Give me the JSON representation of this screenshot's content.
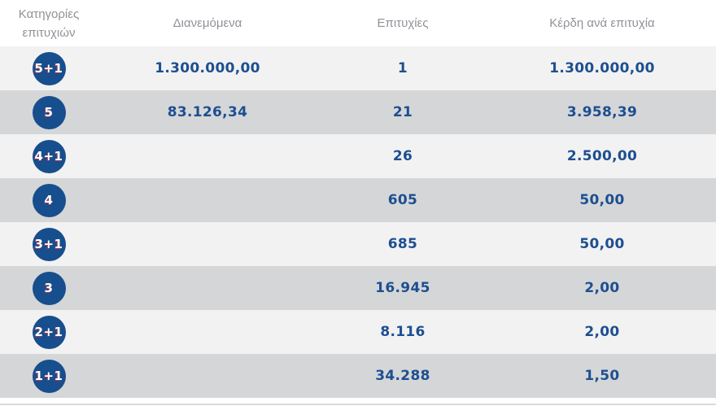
{
  "colors": {
    "primary_blue": "#174e8d",
    "value_text_blue": "#1d4f90",
    "header_text_gray": "#8f9298",
    "row_light": "#f2f2f3",
    "row_dark": "#d5d6d8",
    "badge_shadow_red": "#d63040",
    "bottom_border": "#d9dadb"
  },
  "table": {
    "headers": {
      "categories": "Κατηγορίες επιτυχιών",
      "distributed": "Διανεμόμενα",
      "wins": "Επιτυχίες",
      "prize_per_win": "Κέρδη ανά επιτυχία"
    },
    "rows": [
      {
        "tier": "5+1",
        "distributed": "1.300.000,00",
        "wins": "1",
        "prize": "1.300.000,00"
      },
      {
        "tier": "5",
        "distributed": "83.126,34",
        "wins": "21",
        "prize": "3.958,39"
      },
      {
        "tier": "4+1",
        "distributed": "",
        "wins": "26",
        "prize": "2.500,00"
      },
      {
        "tier": "4",
        "distributed": "",
        "wins": "605",
        "prize": "50,00"
      },
      {
        "tier": "3+1",
        "distributed": "",
        "wins": "685",
        "prize": "50,00"
      },
      {
        "tier": "3",
        "distributed": "",
        "wins": "16.945",
        "prize": "2,00"
      },
      {
        "tier": "2+1",
        "distributed": "",
        "wins": "8.116",
        "prize": "2,00"
      },
      {
        "tier": "1+1",
        "distributed": "",
        "wins": "34.288",
        "prize": "1,50"
      }
    ]
  },
  "chart_data": {
    "type": "table",
    "title": "",
    "columns": [
      "Κατηγορίες επιτυχιών",
      "Διανεμόμενα",
      "Επιτυχίες",
      "Κέρδη ανά επιτυχία"
    ],
    "rows": [
      [
        "5+1",
        "1.300.000,00",
        "1",
        "1.300.000,00"
      ],
      [
        "5",
        "83.126,34",
        "21",
        "3.958,39"
      ],
      [
        "4+1",
        "",
        "26",
        "2.500,00"
      ],
      [
        "4",
        "",
        "605",
        "50,00"
      ],
      [
        "3+1",
        "",
        "685",
        "50,00"
      ],
      [
        "3",
        "",
        "16.945",
        "2,00"
      ],
      [
        "2+1",
        "",
        "8.116",
        "2,00"
      ],
      [
        "1+1",
        "",
        "34.288",
        "1,50"
      ]
    ]
  }
}
